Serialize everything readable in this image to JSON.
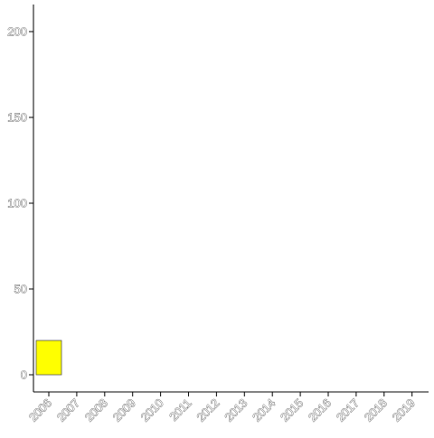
{
  "chart_data": {
    "type": "bar",
    "categories": [
      "2006",
      "2007",
      "2008",
      "2009",
      "2010",
      "2011",
      "2012",
      "2013",
      "2014",
      "2015",
      "2016",
      "2017",
      "2018",
      "2019"
    ],
    "values": [
      20,
      0,
      0,
      0,
      0,
      0,
      0,
      0,
      0,
      0,
      0,
      0,
      0,
      0
    ],
    "y_ticks": [
      0,
      50,
      100,
      150,
      200
    ],
    "ylim": [
      -10,
      217
    ],
    "title": "",
    "xlabel": "",
    "ylabel": "",
    "grid": false,
    "legend": "none",
    "colors": {
      "bar_fill": "#ffff00",
      "bar_stroke": "#555555",
      "axis": "#000000",
      "tick_text_fill": "#ffffff",
      "tick_text_stroke": "#333333"
    }
  }
}
